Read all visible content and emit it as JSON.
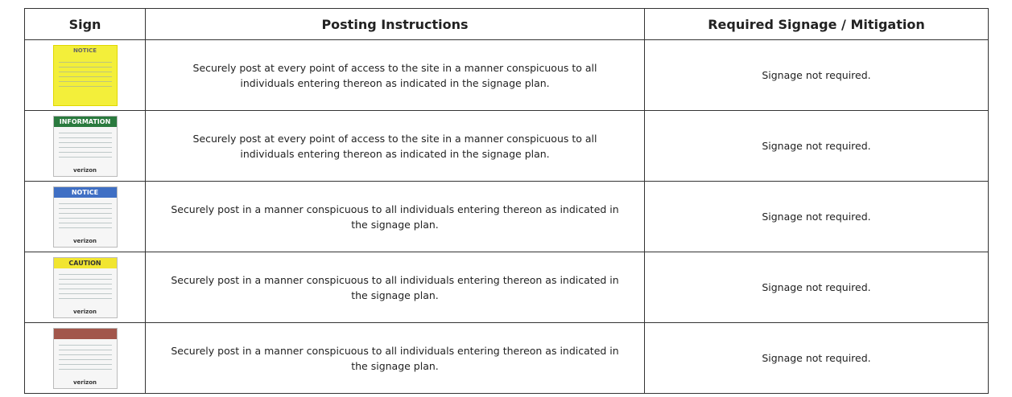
{
  "table": {
    "header": [
      "Sign",
      "Posting Instructions",
      "Required Signage / Mitigation"
    ],
    "rows": [
      {
        "sign": {
          "title": "NOTICE"
        },
        "posting": "Securely post at every point of access to the site in a manner conspicuous to all individuals entering thereon as indicated in the signage plan.",
        "mitigation": "Signage not required."
      },
      {
        "sign": {
          "title": "INFORMATION",
          "brand": "verizon"
        },
        "posting": "Securely post at every point of access to the site in a manner conspicuous to all individuals entering thereon as indicated in the signage plan.",
        "mitigation": "Signage not required."
      },
      {
        "sign": {
          "title": "NOTICE",
          "brand": "verizon"
        },
        "posting": "Securely post in a manner conspicuous to all individuals entering thereon as indicated in the signage plan.",
        "mitigation": "Signage not required."
      },
      {
        "sign": {
          "title": "CAUTION",
          "brand": "verizon"
        },
        "posting": "Securely post in a manner conspicuous to all individuals entering thereon as indicated in the signage plan.",
        "mitigation": "Signage not required."
      },
      {
        "sign": {
          "brand": "verizon"
        },
        "posting": "Securely post in a manner conspicuous to all individuals entering thereon as indicated in the signage plan.",
        "mitigation": "Signage not required."
      }
    ]
  }
}
